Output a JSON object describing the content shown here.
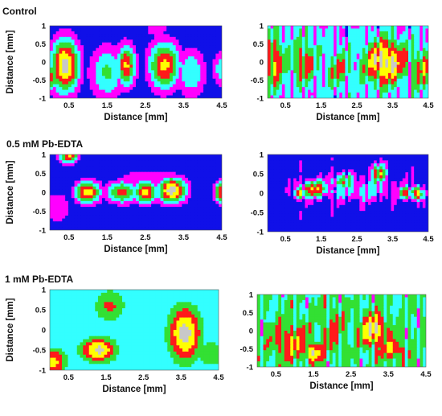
{
  "palette": {
    "levels": [
      "#1010e8",
      "#ff00ff",
      "#33ffff",
      "#33e033",
      "#ff1a1a",
      "#ffff00",
      "#c8c8c8"
    ],
    "names": [
      "blue",
      "magenta",
      "cyan",
      "green",
      "red",
      "yellow",
      "gray"
    ]
  },
  "chart_data": [
    {
      "type": "heatmap",
      "section_title": "Control",
      "xlabel": "Distance [mm]",
      "ylabel": "Distance [mm]",
      "x_ticks": [
        "0.5",
        "1.5",
        "2.5",
        "3.5",
        "4.5"
      ],
      "y_ticks": [
        "1",
        "0.5",
        "0",
        "-0.5",
        "-1"
      ],
      "xlim": [
        0,
        4.5
      ],
      "ylim": [
        -1,
        1
      ],
      "background_level": 0,
      "blobs": [
        {
          "x": 0.4,
          "y": -0.1,
          "sx": 0.45,
          "sy": 0.9,
          "peak": 6.4
        },
        {
          "x": 0.0,
          "y": -0.4,
          "sx": 0.3,
          "sy": 0.5,
          "peak": 4.5
        },
        {
          "x": 1.5,
          "y": -0.3,
          "sx": 0.55,
          "sy": 0.9,
          "peak": 3.2
        },
        {
          "x": 2.0,
          "y": -0.1,
          "sx": 0.3,
          "sy": 0.7,
          "peak": 5.2
        },
        {
          "x": 3.0,
          "y": -0.1,
          "sx": 0.5,
          "sy": 0.8,
          "peak": 5.3
        },
        {
          "x": 3.7,
          "y": -0.3,
          "sx": 0.45,
          "sy": 0.8,
          "peak": 3.0
        },
        {
          "x": 4.5,
          "y": -0.2,
          "sx": 0.3,
          "sy": 0.6,
          "peak": 2.6
        },
        {
          "x": 2.8,
          "y": 0.9,
          "sx": 0.4,
          "sy": 0.3,
          "peak": 1.6
        }
      ]
    },
    {
      "type": "heatmap",
      "section_title": "",
      "xlabel": "Distance [mm]",
      "ylabel": "",
      "x_ticks": [
        "0.5",
        "1.5",
        "2.5",
        "3.5",
        "4.5"
      ],
      "y_ticks": [
        "1",
        "0.5",
        "0",
        "-0.5",
        "-1"
      ],
      "xlim": [
        0,
        4.5
      ],
      "ylim": [
        -1,
        1
      ],
      "background_level": 2,
      "blobs": [
        {
          "x": 0.2,
          "y": 0.0,
          "sx": 0.35,
          "sy": 0.9,
          "peak": 4.8
        },
        {
          "x": 1.0,
          "y": 0.0,
          "sx": 0.45,
          "sy": 0.7,
          "peak": 4.5
        },
        {
          "x": 2.0,
          "y": -0.2,
          "sx": 0.4,
          "sy": 0.6,
          "peak": 4.0
        },
        {
          "x": 3.3,
          "y": 0.0,
          "sx": 0.7,
          "sy": 0.7,
          "peak": 6.4
        },
        {
          "x": 4.3,
          "y": -0.2,
          "sx": 0.4,
          "sy": 0.7,
          "peak": 4.4
        }
      ],
      "streaks": true
    },
    {
      "type": "heatmap",
      "section_title": "0.5 mM Pb-EDTA",
      "xlabel": "Distance [mm]",
      "ylabel": "Distance [mm]",
      "x_ticks": [
        "0.5",
        "1.5",
        "2.5",
        "3.5",
        "4.5"
      ],
      "y_ticks": [
        "1",
        "0.5",
        "0",
        "-0.5",
        "-1"
      ],
      "xlim": [
        0,
        4.5
      ],
      "ylim": [
        -1,
        1
      ],
      "background_level": 0,
      "blobs": [
        {
          "x": 0.5,
          "y": 1.0,
          "sx": 0.3,
          "sy": 0.3,
          "peak": 5.2
        },
        {
          "x": 1.0,
          "y": 0.0,
          "sx": 0.4,
          "sy": 0.35,
          "peak": 5.8
        },
        {
          "x": 1.9,
          "y": 0.0,
          "sx": 0.5,
          "sy": 0.35,
          "peak": 4.6
        },
        {
          "x": 2.5,
          "y": 0.0,
          "sx": 0.35,
          "sy": 0.35,
          "peak": 5.6
        },
        {
          "x": 3.2,
          "y": 0.05,
          "sx": 0.45,
          "sy": 0.4,
          "peak": 6.5
        },
        {
          "x": 4.5,
          "y": 0.0,
          "sx": 0.25,
          "sy": 0.35,
          "peak": 5.0
        },
        {
          "x": 0.2,
          "y": -0.4,
          "sx": 0.5,
          "sy": 0.6,
          "peak": 1.6
        },
        {
          "x": 2.6,
          "y": 0.4,
          "sx": 1.3,
          "sy": 0.35,
          "peak": 1.4
        }
      ]
    },
    {
      "type": "heatmap",
      "section_title": "",
      "xlabel": "Distance [mm]",
      "ylabel": "",
      "x_ticks": [
        "0.5",
        "1.5",
        "2.5",
        "3.5",
        "4.5"
      ],
      "y_ticks": [
        "1",
        "0.5",
        "0",
        "-0.5",
        "-1"
      ],
      "xlim": [
        0,
        4.5
      ],
      "ylim": [
        -1,
        1
      ],
      "background_level": 0,
      "blobs": [
        {
          "x": 1.3,
          "y": 0.1,
          "sx": 0.6,
          "sy": 0.3,
          "peak": 4.6
        },
        {
          "x": 0.9,
          "y": 0.0,
          "sx": 0.2,
          "sy": 0.2,
          "peak": 5.6
        },
        {
          "x": 2.1,
          "y": 0.3,
          "sx": 0.5,
          "sy": 0.3,
          "peak": 3.4
        },
        {
          "x": 3.1,
          "y": 0.5,
          "sx": 0.3,
          "sy": 0.35,
          "peak": 4.4
        },
        {
          "x": 3.9,
          "y": 0.0,
          "sx": 0.3,
          "sy": 0.2,
          "peak": 4.6
        },
        {
          "x": 4.2,
          "y": 0.0,
          "sx": 0.2,
          "sy": 0.25,
          "peak": 5.5
        },
        {
          "x": 2.5,
          "y": 0.1,
          "sx": 1.8,
          "sy": 0.45,
          "peak": 2.3
        }
      ],
      "streaks": true
    },
    {
      "type": "heatmap",
      "section_title": "1 mM Pb-EDTA",
      "xlabel": "Distance [mm]",
      "ylabel": "Distance [mm]",
      "x_ticks": [
        "0.5",
        "1.5",
        "2.5",
        "3.5",
        "4.5"
      ],
      "y_ticks": [
        "1",
        "0.5",
        "0",
        "-0.5",
        "-1"
      ],
      "xlim": [
        0,
        4.5
      ],
      "ylim": [
        -1,
        1
      ],
      "background_level": 2,
      "blobs": [
        {
          "x": 1.3,
          "y": -0.5,
          "sx": 0.55,
          "sy": 0.35,
          "peak": 6.3
        },
        {
          "x": 0.1,
          "y": -0.8,
          "sx": 0.4,
          "sy": 0.4,
          "peak": 5.4
        },
        {
          "x": 1.6,
          "y": 0.6,
          "sx": 0.5,
          "sy": 0.5,
          "peak": 4.2
        },
        {
          "x": 3.6,
          "y": -0.1,
          "sx": 0.5,
          "sy": 0.8,
          "peak": 6.5
        },
        {
          "x": 4.3,
          "y": -0.6,
          "sx": 0.4,
          "sy": 0.4,
          "peak": 4.0
        },
        {
          "x": 2.5,
          "y": 0.9,
          "sx": 0.5,
          "sy": 0.3,
          "peak": 0.2
        },
        {
          "x": 4.4,
          "y": 0.8,
          "sx": 0.3,
          "sy": 0.3,
          "peak": 0.2
        }
      ]
    },
    {
      "type": "heatmap",
      "section_title": "",
      "xlabel": "Distance [mm]",
      "ylabel": "",
      "x_ticks": [
        "0.5",
        "1.5",
        "2.5",
        "3.5",
        "4.5"
      ],
      "y_ticks": [
        "1",
        "0.5",
        "0",
        "-0.5",
        "-1"
      ],
      "xlim": [
        0,
        4.5
      ],
      "ylim": [
        -1,
        1
      ],
      "background_level": 3,
      "blobs": [
        {
          "x": 0.9,
          "y": -0.3,
          "sx": 0.6,
          "sy": 0.6,
          "peak": 4.8
        },
        {
          "x": 2.0,
          "y": 0.0,
          "sx": 0.4,
          "sy": 0.7,
          "peak": 4.2
        },
        {
          "x": 3.1,
          "y": 0.0,
          "sx": 0.4,
          "sy": 0.5,
          "peak": 6.2
        },
        {
          "x": 1.5,
          "y": -0.6,
          "sx": 0.3,
          "sy": 0.3,
          "peak": 6.0
        },
        {
          "x": 3.6,
          "y": -0.5,
          "sx": 0.4,
          "sy": 0.4,
          "peak": 5.0
        }
      ],
      "streaks": true
    }
  ]
}
